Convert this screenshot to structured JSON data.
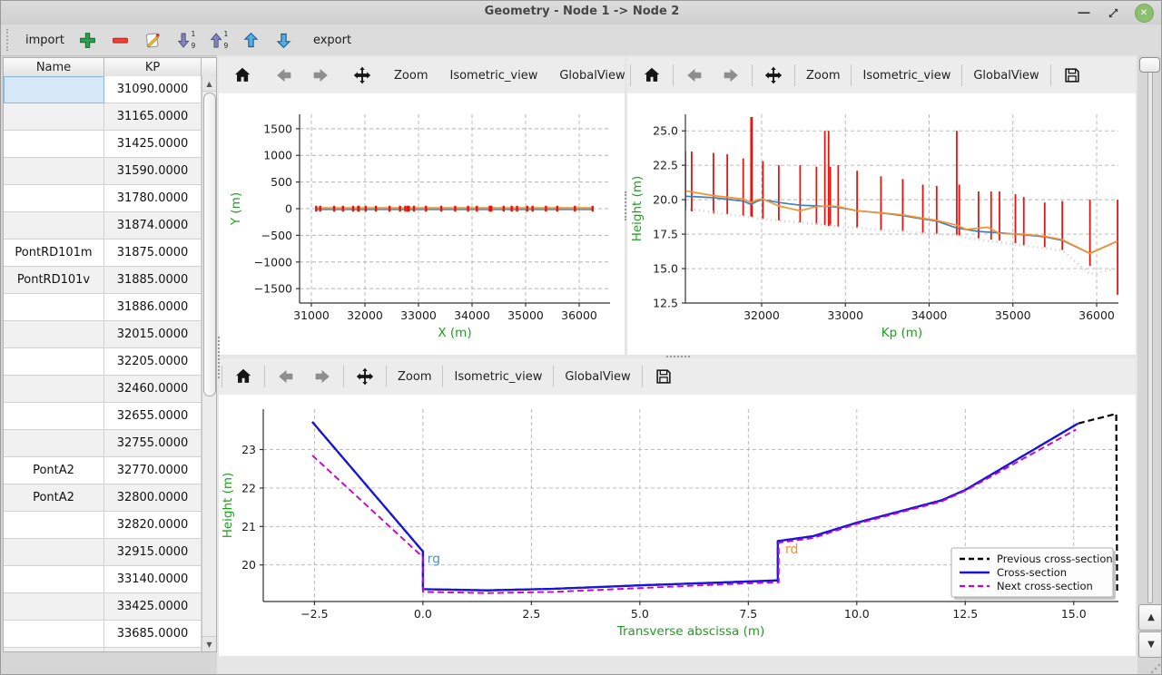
{
  "window": {
    "title": "Geometry - Node 1 -> Node 2"
  },
  "main_toolbar": {
    "import_label": "import",
    "export_label": "export"
  },
  "table": {
    "columns": [
      "Name",
      "KP"
    ],
    "selected_row_index": 0,
    "rows": [
      {
        "name": "",
        "kp": "31090.0000"
      },
      {
        "name": "",
        "kp": "31165.0000"
      },
      {
        "name": "",
        "kp": "31425.0000"
      },
      {
        "name": "",
        "kp": "31590.0000"
      },
      {
        "name": "",
        "kp": "31780.0000"
      },
      {
        "name": "",
        "kp": "31874.0000"
      },
      {
        "name": "PontRD101m",
        "kp": "31875.0000"
      },
      {
        "name": "PontRD101v",
        "kp": "31885.0000"
      },
      {
        "name": "",
        "kp": "31886.0000"
      },
      {
        "name": "",
        "kp": "32015.0000"
      },
      {
        "name": "",
        "kp": "32205.0000"
      },
      {
        "name": "",
        "kp": "32460.0000"
      },
      {
        "name": "",
        "kp": "32655.0000"
      },
      {
        "name": "",
        "kp": "32755.0000"
      },
      {
        "name": "PontA2",
        "kp": "32770.0000"
      },
      {
        "name": "PontA2",
        "kp": "32800.0000"
      },
      {
        "name": "",
        "kp": "32820.0000"
      },
      {
        "name": "",
        "kp": "32915.0000"
      },
      {
        "name": "",
        "kp": "33140.0000"
      },
      {
        "name": "",
        "kp": "33425.0000"
      },
      {
        "name": "",
        "kp": "33685.0000"
      },
      {
        "name": "",
        "kp": ""
      }
    ]
  },
  "chart_toolbar": {
    "zoom_label": "Zoom",
    "isometric_label": "Isometric_view",
    "globalview_label": "GlobalView",
    "overflow_label": "»"
  },
  "chart_data": [
    {
      "id": "plan",
      "type": "line",
      "xlabel": "X (m)",
      "ylabel": "Y (m)",
      "label_color": "#1f9e1f",
      "xlim": [
        30780,
        36576
      ],
      "ylim": [
        -1770,
        1770
      ],
      "xticks": [
        31000,
        32000,
        33000,
        34000,
        35000,
        36000
      ],
      "yticks": [
        -1500,
        -1000,
        -500,
        0,
        500,
        1000,
        1500
      ],
      "xtick_decimals": 0,
      "ytick_decimals": 0,
      "series": [
        {
          "name": "river-axis-blue",
          "color": "#5e8cb0",
          "width": 2,
          "x": [
            31090,
            36250
          ],
          "y": [
            -14,
            -14
          ]
        },
        {
          "name": "river-axis-orange",
          "color": "#f5922f",
          "width": 2,
          "x": [
            31090,
            36250
          ],
          "y": [
            12,
            12
          ]
        }
      ],
      "markers": {
        "name": "cross-section-positions",
        "color": "#e8140f",
        "y0": -55,
        "y1": 55,
        "x": [
          31090,
          31165,
          31425,
          31590,
          31780,
          31874,
          31885,
          32015,
          32205,
          32460,
          32655,
          32755,
          32800,
          32820,
          32915,
          33140,
          33425,
          33685,
          33925,
          34090,
          34330,
          34360,
          34590,
          34740,
          34840,
          35030,
          35130,
          35380,
          35590,
          35920,
          36250
        ]
      }
    },
    {
      "id": "profile",
      "type": "line",
      "xlabel": "Kp (m)",
      "ylabel": "Height (m)",
      "label_color": "#1f9e1f",
      "xlim": [
        31090,
        36260
      ],
      "ylim": [
        12.5,
        26.2
      ],
      "xticks": [
        32000,
        33000,
        34000,
        35000,
        36000
      ],
      "yticks": [
        12.5,
        15.0,
        17.5,
        20.0,
        22.5,
        25.0
      ],
      "xtick_decimals": 0,
      "ytick_decimals": 1,
      "vline_color": "#e8140f",
      "vlines": [
        [
          31090,
          19.2,
          23.5
        ],
        [
          31165,
          19.15,
          23.5
        ],
        [
          31425,
          19.0,
          23.4
        ],
        [
          31590,
          18.95,
          23.3
        ],
        [
          31780,
          18.85,
          23.0
        ],
        [
          31874,
          18.8,
          26.0
        ],
        [
          31885,
          18.75,
          26.0
        ],
        [
          32015,
          18.6,
          22.8
        ],
        [
          32205,
          18.5,
          22.5
        ],
        [
          32460,
          18.35,
          22.5
        ],
        [
          32655,
          18.2,
          22.4
        ],
        [
          32755,
          18.15,
          25.0
        ],
        [
          32800,
          18.1,
          25.0
        ],
        [
          32820,
          18.1,
          22.4
        ],
        [
          32915,
          18.05,
          22.5
        ],
        [
          33140,
          17.95,
          22.1
        ],
        [
          33425,
          17.8,
          21.7
        ],
        [
          33685,
          17.7,
          21.5
        ],
        [
          33925,
          17.6,
          21.1
        ],
        [
          34090,
          17.55,
          21.0
        ],
        [
          34330,
          17.45,
          25.0
        ],
        [
          34360,
          17.4,
          21.1
        ],
        [
          34590,
          17.2,
          20.6
        ],
        [
          34740,
          17.1,
          20.6
        ],
        [
          34840,
          17.05,
          20.6
        ],
        [
          35030,
          16.85,
          20.4
        ],
        [
          35130,
          16.7,
          20.2
        ],
        [
          35380,
          16.55,
          19.8
        ],
        [
          35590,
          16.35,
          19.9
        ],
        [
          35920,
          15.2,
          20.0
        ],
        [
          36250,
          13.1,
          20.0
        ]
      ],
      "series": [
        {
          "name": "river-bottom",
          "color": "#cdcdcd",
          "width": 2.6,
          "dash": [
            1,
            4
          ],
          "x": [
            31090,
            31425,
            31780,
            32015,
            32460,
            32915,
            33425,
            33925,
            34330,
            34590,
            34840,
            35130,
            35380,
            35590,
            35920,
            36250
          ],
          "y": [
            19.35,
            19.1,
            18.8,
            18.6,
            18.35,
            18.05,
            17.8,
            17.6,
            17.4,
            17.1,
            16.9,
            16.65,
            16.5,
            16.3,
            14.6,
            15.0
          ]
        },
        {
          "name": "left-bank",
          "color": "#3c80bc",
          "width": 1.7,
          "x": [
            31090,
            31425,
            31780,
            31874,
            31950,
            32015,
            32205,
            32460,
            32655,
            32820,
            32915,
            33140,
            33425,
            33685,
            33925,
            34090,
            34330,
            34590,
            34840,
            35130,
            35380,
            35590,
            35920,
            36250
          ],
          "y": [
            20.25,
            20.15,
            19.9,
            19.65,
            19.9,
            20.0,
            19.8,
            19.6,
            19.55,
            19.5,
            19.45,
            19.2,
            19.05,
            18.85,
            18.6,
            18.45,
            17.95,
            17.7,
            17.6,
            17.45,
            17.3,
            17.05,
            16.1,
            17.0
          ]
        },
        {
          "name": "right-bank",
          "color": "#f5922f",
          "width": 1.7,
          "x": [
            31090,
            31425,
            31780,
            31874,
            31950,
            32015,
            32205,
            32460,
            32655,
            32820,
            32915,
            33140,
            33425,
            33685,
            33925,
            34090,
            34330,
            34440,
            34700,
            34840,
            35130,
            35380,
            35590,
            35920,
            36250
          ],
          "y": [
            20.65,
            20.3,
            20.05,
            19.8,
            20.0,
            20.05,
            19.55,
            19.2,
            19.5,
            19.55,
            19.5,
            19.2,
            19.05,
            18.9,
            18.65,
            18.5,
            18.15,
            17.85,
            18.0,
            17.55,
            17.5,
            17.35,
            17.1,
            16.1,
            17.0
          ]
        }
      ]
    },
    {
      "id": "cross",
      "type": "line",
      "xlabel": "Transverse abscissa (m)",
      "ylabel": "Height (m)",
      "label_color": "#1f9e1f",
      "xlim": [
        -3.68,
        16.03
      ],
      "ylim": [
        19.05,
        24.05
      ],
      "xticks": [
        -2.5,
        0.0,
        2.5,
        5.0,
        7.5,
        10.0,
        12.5,
        15.0
      ],
      "yticks": [
        20,
        21,
        22,
        23
      ],
      "xtick_decimals": 1,
      "ytick_decimals": 0,
      "series": [
        {
          "name": "previous-cross-section",
          "color": "#000000",
          "width": 2.2,
          "dash": [
            7,
            4
          ],
          "x": [
            -2.55,
            0,
            0,
            1.5,
            3,
            5,
            7,
            8.18,
            8.18,
            9,
            10,
            11.95,
            12.5,
            15.1,
            15.98,
            16.0
          ],
          "y": [
            23.72,
            20.35,
            19.37,
            19.34,
            19.38,
            19.47,
            19.55,
            19.6,
            20.62,
            20.75,
            21.1,
            21.68,
            21.95,
            23.68,
            23.93,
            19.3
          ]
        },
        {
          "name": "cross-section",
          "color": "#1515dd",
          "width": 2.3,
          "x": [
            -2.55,
            0,
            0,
            1.5,
            3,
            5,
            7,
            8.18,
            8.18,
            9,
            10,
            11.95,
            12.5,
            15.1
          ],
          "y": [
            23.72,
            20.35,
            19.37,
            19.34,
            19.38,
            19.47,
            19.55,
            19.6,
            20.62,
            20.75,
            21.1,
            21.68,
            21.95,
            23.68
          ]
        },
        {
          "name": "next-cross-section",
          "color": "#cc00cc",
          "width": 1.9,
          "dash": [
            7,
            4
          ],
          "x": [
            -2.55,
            0,
            0,
            1.5,
            3,
            5,
            7,
            8.2,
            8.2,
            9,
            10,
            11.95,
            12.5,
            15.05
          ],
          "y": [
            22.85,
            20.2,
            19.3,
            19.27,
            19.3,
            19.4,
            19.5,
            19.55,
            20.58,
            20.7,
            21.07,
            21.65,
            21.93,
            23.52
          ]
        }
      ],
      "annotations": [
        {
          "text": "rg",
          "x": 0.1,
          "y": 20.05,
          "color": "#4d94c9"
        },
        {
          "text": "rd",
          "x": 8.35,
          "y": 20.3,
          "color": "#ff8c1a"
        }
      ],
      "legend": {
        "position": "lower right",
        "entries": [
          {
            "label": "Previous cross-section",
            "color": "#000000",
            "dash": [
              6,
              4
            ],
            "width": 2.6
          },
          {
            "label": "Cross-section",
            "color": "#1515dd",
            "dash": null,
            "width": 2.6
          },
          {
            "label": "Next cross-section",
            "color": "#cc00cc",
            "dash": [
              6,
              4
            ],
            "width": 2.2
          }
        ]
      }
    }
  ]
}
